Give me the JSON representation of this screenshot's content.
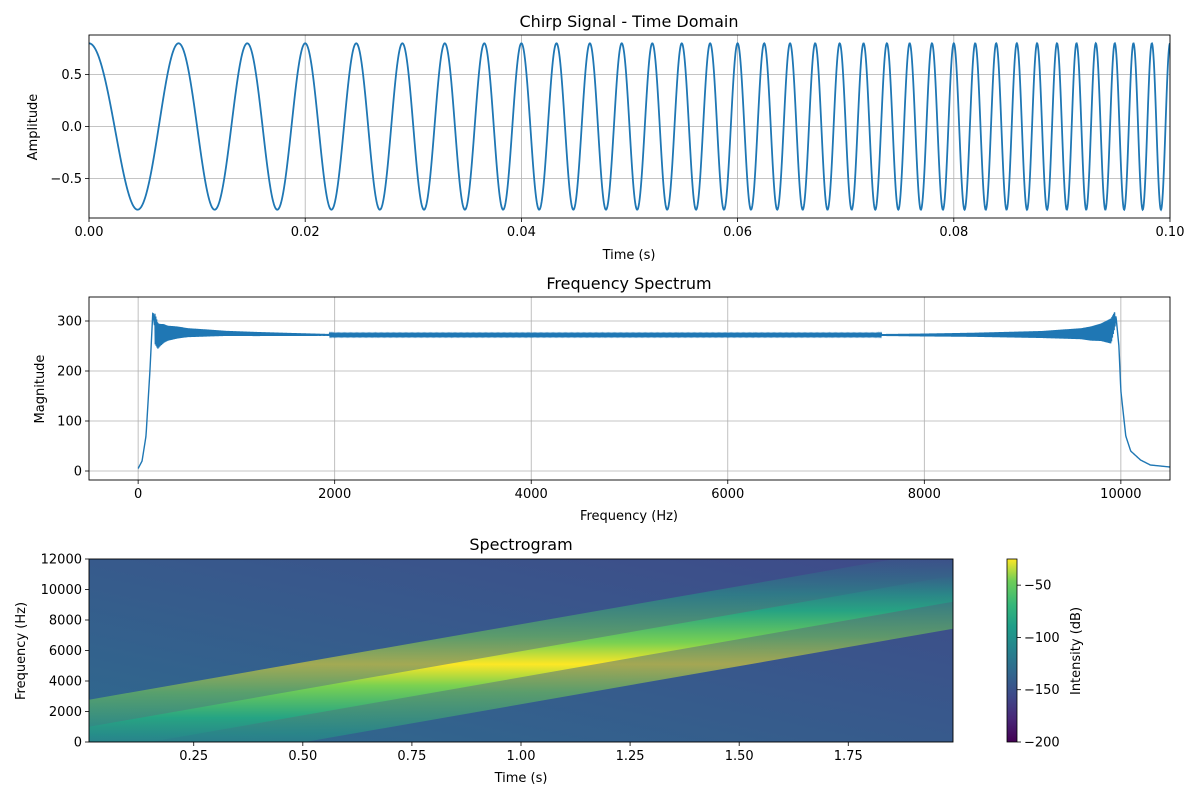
{
  "chart_data": [
    {
      "id": "time",
      "type": "line",
      "title": "Chirp Signal - Time Domain",
      "xlabel": "Time (s)",
      "ylabel": "Amplitude",
      "xlim": [
        0,
        0.1
      ],
      "ylim": [
        -0.88,
        0.88
      ],
      "x_ticks": [
        0.0,
        0.02,
        0.04,
        0.06,
        0.08,
        0.1
      ],
      "x_tick_labels": [
        "0.00",
        "0.02",
        "0.04",
        "0.06",
        "0.08",
        "0.10"
      ],
      "y_ticks": [
        -0.5,
        0.0,
        0.5
      ],
      "y_tick_labels": [
        "−0.5",
        "0.0",
        "0.5"
      ],
      "grid": true,
      "series": [
        {
          "amplitude": 0.8,
          "f0_hz": 100,
          "chirp_rate_hz_per_s": 5000,
          "color": "#1f77b4"
        }
      ]
    },
    {
      "id": "freq",
      "type": "line",
      "title": "Frequency Spectrum",
      "xlabel": "Frequency (Hz)",
      "ylabel": "Magnitude",
      "xlim": [
        -500,
        10500
      ],
      "ylim": [
        -18,
        348
      ],
      "x_ticks": [
        0,
        2000,
        4000,
        6000,
        8000,
        10000
      ],
      "x_tick_labels": [
        "0",
        "2000",
        "4000",
        "6000",
        "8000",
        "10000"
      ],
      "y_ticks": [
        0,
        100,
        200,
        300
      ],
      "y_tick_labels": [
        "0",
        "100",
        "200",
        "300"
      ],
      "grid": true,
      "series": [
        {
          "color": "#1f77b4",
          "envelope": {
            "x": [
              0,
              40,
              80,
              120,
              150,
              170,
              200,
              260,
              400,
              700,
              1200,
              2000,
              5000,
              8000,
              9200,
              9700,
              9900,
              9950,
              9980,
              10000,
              10050,
              10100,
              10200,
              10300,
              10500
            ],
            "y": [
              5,
              20,
              70,
              200,
              320,
              285,
              270,
              275,
              277,
              276,
              274,
              272,
              272,
              272,
              273,
              275,
              280,
              310,
              250,
              160,
              70,
              40,
              22,
              12,
              8
            ]
          },
          "ripple": {
            "x": [
              170,
              220,
              300,
              500,
              900,
              1500,
              2000,
              7500,
              8500,
              9200,
              9600,
              9800,
              9900,
              9940
            ],
            "y": [
              60,
              45,
              30,
              18,
              10,
              6,
              3,
              3,
              8,
              14,
              22,
              35,
              50,
              30
            ]
          }
        }
      ]
    },
    {
      "id": "spec",
      "type": "heatmap",
      "title": "Spectrogram",
      "xlabel": "Time (s)",
      "ylabel": "Frequency (Hz)",
      "xlim": [
        0.01,
        1.99
      ],
      "ylim": [
        0,
        12000
      ],
      "x_ticks": [
        0.25,
        0.5,
        0.75,
        1.0,
        1.25,
        1.5,
        1.75
      ],
      "x_tick_labels": [
        "0.25",
        "0.50",
        "0.75",
        "1.00",
        "1.25",
        "1.50",
        "1.75"
      ],
      "y_ticks": [
        0,
        2000,
        4000,
        6000,
        8000,
        10000,
        12000
      ],
      "y_tick_labels": [
        "0",
        "2000",
        "4000",
        "6000",
        "8000",
        "10000",
        "12000"
      ],
      "ridge": {
        "t": [
          0,
          2
        ],
        "f": [
          100,
          10100
        ]
      },
      "colormap": "viridis",
      "colorbar": {
        "label": "Intensity (dB)",
        "range": [
          -200,
          -25
        ],
        "ticks": [
          -50,
          -100,
          -150,
          -200
        ],
        "tick_labels": [
          "−50",
          "−100",
          "−150",
          "−200"
        ]
      }
    }
  ]
}
